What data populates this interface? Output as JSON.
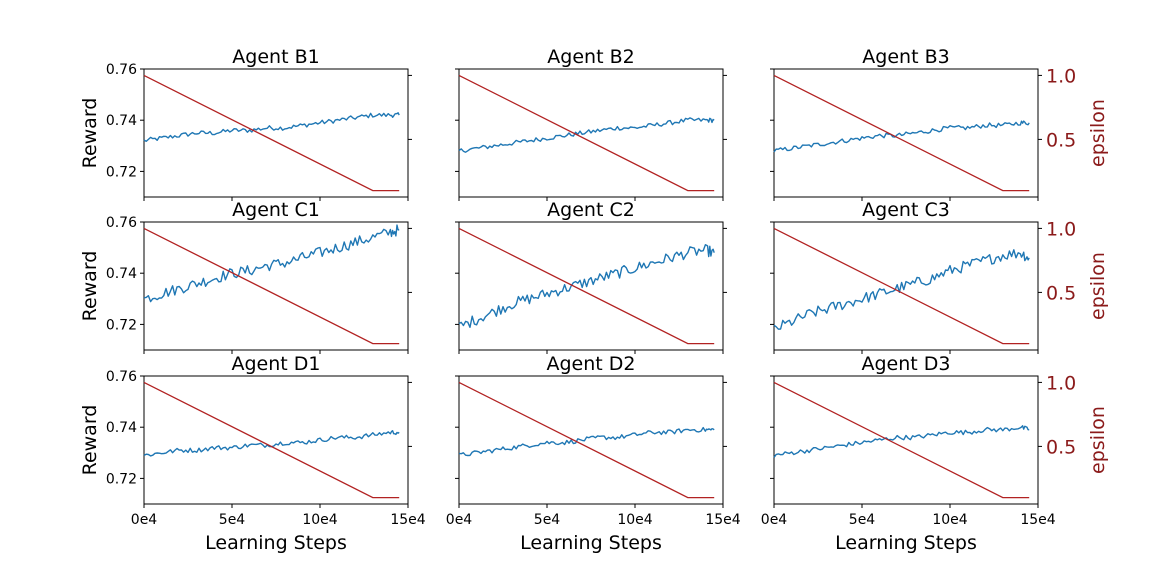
{
  "figure": {
    "left_axis_label": "Reward",
    "right_axis_label": "epsilon",
    "x_axis_label": "Learning Steps",
    "reward_color": "#1f77b4",
    "epsilon_color": "#b22222",
    "right_axis_color": "#8b1a1a",
    "reward_ticks": [
      "0.72",
      "0.74",
      "0.76"
    ],
    "epsilon_ticks": [
      "0.5",
      "1.0"
    ],
    "x_ticks": [
      "0e4",
      "5e4",
      "10e4",
      "15e4"
    ]
  },
  "chart_data": [
    {
      "type": "line",
      "title": "Agent B1",
      "xlabel": "",
      "ylabel": "Reward",
      "y2label": "epsilon",
      "xlim": [
        0,
        150000
      ],
      "ylim": [
        0.71,
        0.76
      ],
      "y2lim": [
        0.05,
        1.05
      ],
      "series": [
        {
          "axis": "left",
          "x": [
            0,
            10000,
            20000,
            30000,
            40000,
            50000,
            60000,
            70000,
            80000,
            90000,
            100000,
            110000,
            120000,
            130000,
            140000,
            145000
          ],
          "values": [
            0.732,
            0.733,
            0.734,
            0.735,
            0.735,
            0.736,
            0.736,
            0.737,
            0.737,
            0.738,
            0.739,
            0.74,
            0.741,
            0.742,
            0.742,
            0.742
          ]
        },
        {
          "axis": "right",
          "x": [
            0,
            130000,
            145000
          ],
          "values": [
            1.0,
            0.1,
            0.1
          ]
        }
      ]
    },
    {
      "type": "line",
      "title": "Agent B2",
      "xlabel": "",
      "ylabel": "Reward",
      "y2label": "epsilon",
      "xlim": [
        0,
        150000
      ],
      "ylim": [
        0.71,
        0.76
      ],
      "y2lim": [
        0.05,
        1.05
      ],
      "series": [
        {
          "axis": "left",
          "x": [
            0,
            10000,
            20000,
            30000,
            40000,
            50000,
            60000,
            70000,
            80000,
            90000,
            100000,
            110000,
            120000,
            130000,
            140000,
            145000
          ],
          "values": [
            0.728,
            0.729,
            0.73,
            0.731,
            0.732,
            0.733,
            0.734,
            0.735,
            0.736,
            0.737,
            0.737,
            0.738,
            0.739,
            0.74,
            0.74,
            0.74
          ]
        },
        {
          "axis": "right",
          "x": [
            0,
            130000,
            145000
          ],
          "values": [
            1.0,
            0.1,
            0.1
          ]
        }
      ]
    },
    {
      "type": "line",
      "title": "Agent B3",
      "xlabel": "",
      "ylabel": "Reward",
      "y2label": "epsilon",
      "xlim": [
        0,
        150000
      ],
      "ylim": [
        0.71,
        0.76
      ],
      "y2lim": [
        0.05,
        1.05
      ],
      "series": [
        {
          "axis": "left",
          "x": [
            0,
            10000,
            20000,
            30000,
            40000,
            50000,
            60000,
            70000,
            80000,
            90000,
            100000,
            110000,
            120000,
            130000,
            140000,
            145000
          ],
          "values": [
            0.728,
            0.729,
            0.73,
            0.731,
            0.732,
            0.733,
            0.734,
            0.734,
            0.735,
            0.736,
            0.737,
            0.737,
            0.738,
            0.738,
            0.739,
            0.739
          ]
        },
        {
          "axis": "right",
          "x": [
            0,
            130000,
            145000
          ],
          "values": [
            1.0,
            0.1,
            0.1
          ]
        }
      ]
    },
    {
      "type": "line",
      "title": "Agent C1",
      "xlabel": "",
      "ylabel": "Reward",
      "y2label": "epsilon",
      "xlim": [
        0,
        150000
      ],
      "ylim": [
        0.71,
        0.76
      ],
      "y2lim": [
        0.05,
        1.05
      ],
      "series": [
        {
          "axis": "left",
          "x": [
            0,
            10000,
            20000,
            30000,
            40000,
            50000,
            60000,
            70000,
            80000,
            90000,
            100000,
            110000,
            120000,
            130000,
            140000,
            145000
          ],
          "values": [
            0.73,
            0.732,
            0.734,
            0.736,
            0.738,
            0.74,
            0.741,
            0.743,
            0.744,
            0.746,
            0.748,
            0.75,
            0.752,
            0.754,
            0.756,
            0.757
          ]
        },
        {
          "axis": "right",
          "x": [
            0,
            130000,
            145000
          ],
          "values": [
            1.0,
            0.1,
            0.1
          ]
        }
      ]
    },
    {
      "type": "line",
      "title": "Agent C2",
      "xlabel": "",
      "ylabel": "Reward",
      "y2label": "epsilon",
      "xlim": [
        0,
        150000
      ],
      "ylim": [
        0.71,
        0.76
      ],
      "y2lim": [
        0.05,
        1.05
      ],
      "series": [
        {
          "axis": "left",
          "x": [
            0,
            10000,
            20000,
            30000,
            40000,
            50000,
            60000,
            70000,
            80000,
            90000,
            100000,
            110000,
            120000,
            130000,
            140000,
            145000
          ],
          "values": [
            0.719,
            0.722,
            0.725,
            0.728,
            0.73,
            0.732,
            0.734,
            0.736,
            0.738,
            0.74,
            0.742,
            0.744,
            0.746,
            0.748,
            0.749,
            0.748
          ]
        },
        {
          "axis": "right",
          "x": [
            0,
            130000,
            145000
          ],
          "values": [
            1.0,
            0.1,
            0.1
          ]
        }
      ]
    },
    {
      "type": "line",
      "title": "Agent C3",
      "xlabel": "",
      "ylabel": "Reward",
      "y2label": "epsilon",
      "xlim": [
        0,
        150000
      ],
      "ylim": [
        0.71,
        0.76
      ],
      "y2lim": [
        0.05,
        1.05
      ],
      "series": [
        {
          "axis": "left",
          "x": [
            0,
            10000,
            20000,
            30000,
            40000,
            50000,
            60000,
            70000,
            80000,
            90000,
            100000,
            110000,
            120000,
            130000,
            140000,
            145000
          ],
          "values": [
            0.718,
            0.721,
            0.724,
            0.726,
            0.728,
            0.73,
            0.732,
            0.734,
            0.736,
            0.738,
            0.741,
            0.743,
            0.745,
            0.747,
            0.748,
            0.746
          ]
        },
        {
          "axis": "right",
          "x": [
            0,
            130000,
            145000
          ],
          "values": [
            1.0,
            0.1,
            0.1
          ]
        }
      ]
    },
    {
      "type": "line",
      "title": "Agent D1",
      "xlabel": "Learning Steps",
      "ylabel": "Reward",
      "y2label": "epsilon",
      "xlim": [
        0,
        150000
      ],
      "ylim": [
        0.71,
        0.76
      ],
      "y2lim": [
        0.05,
        1.05
      ],
      "series": [
        {
          "axis": "left",
          "x": [
            0,
            10000,
            20000,
            30000,
            40000,
            50000,
            60000,
            70000,
            80000,
            90000,
            100000,
            110000,
            120000,
            130000,
            140000,
            145000
          ],
          "values": [
            0.729,
            0.73,
            0.731,
            0.731,
            0.732,
            0.732,
            0.733,
            0.733,
            0.734,
            0.734,
            0.735,
            0.736,
            0.736,
            0.737,
            0.738,
            0.738
          ]
        },
        {
          "axis": "right",
          "x": [
            0,
            130000,
            145000
          ],
          "values": [
            1.0,
            0.1,
            0.1
          ]
        }
      ]
    },
    {
      "type": "line",
      "title": "Agent D2",
      "xlabel": "Learning Steps",
      "ylabel": "Reward",
      "y2label": "epsilon",
      "xlim": [
        0,
        150000
      ],
      "ylim": [
        0.71,
        0.76
      ],
      "y2lim": [
        0.05,
        1.05
      ],
      "series": [
        {
          "axis": "left",
          "x": [
            0,
            10000,
            20000,
            30000,
            40000,
            50000,
            60000,
            70000,
            80000,
            90000,
            100000,
            110000,
            120000,
            130000,
            140000,
            145000
          ],
          "values": [
            0.729,
            0.73,
            0.731,
            0.732,
            0.733,
            0.734,
            0.734,
            0.735,
            0.736,
            0.736,
            0.737,
            0.738,
            0.738,
            0.739,
            0.739,
            0.739
          ]
        },
        {
          "axis": "right",
          "x": [
            0,
            130000,
            145000
          ],
          "values": [
            1.0,
            0.1,
            0.1
          ]
        }
      ]
    },
    {
      "type": "line",
      "title": "Agent D3",
      "xlabel": "Learning Steps",
      "ylabel": "Reward",
      "y2label": "epsilon",
      "xlim": [
        0,
        150000
      ],
      "ylim": [
        0.71,
        0.76
      ],
      "y2lim": [
        0.05,
        1.05
      ],
      "series": [
        {
          "axis": "left",
          "x": [
            0,
            10000,
            20000,
            30000,
            40000,
            50000,
            60000,
            70000,
            80000,
            90000,
            100000,
            110000,
            120000,
            130000,
            140000,
            145000
          ],
          "values": [
            0.729,
            0.73,
            0.731,
            0.732,
            0.733,
            0.734,
            0.735,
            0.736,
            0.736,
            0.737,
            0.738,
            0.738,
            0.739,
            0.739,
            0.74,
            0.739
          ]
        },
        {
          "axis": "right",
          "x": [
            0,
            130000,
            145000
          ],
          "values": [
            1.0,
            0.1,
            0.1
          ]
        }
      ]
    }
  ]
}
